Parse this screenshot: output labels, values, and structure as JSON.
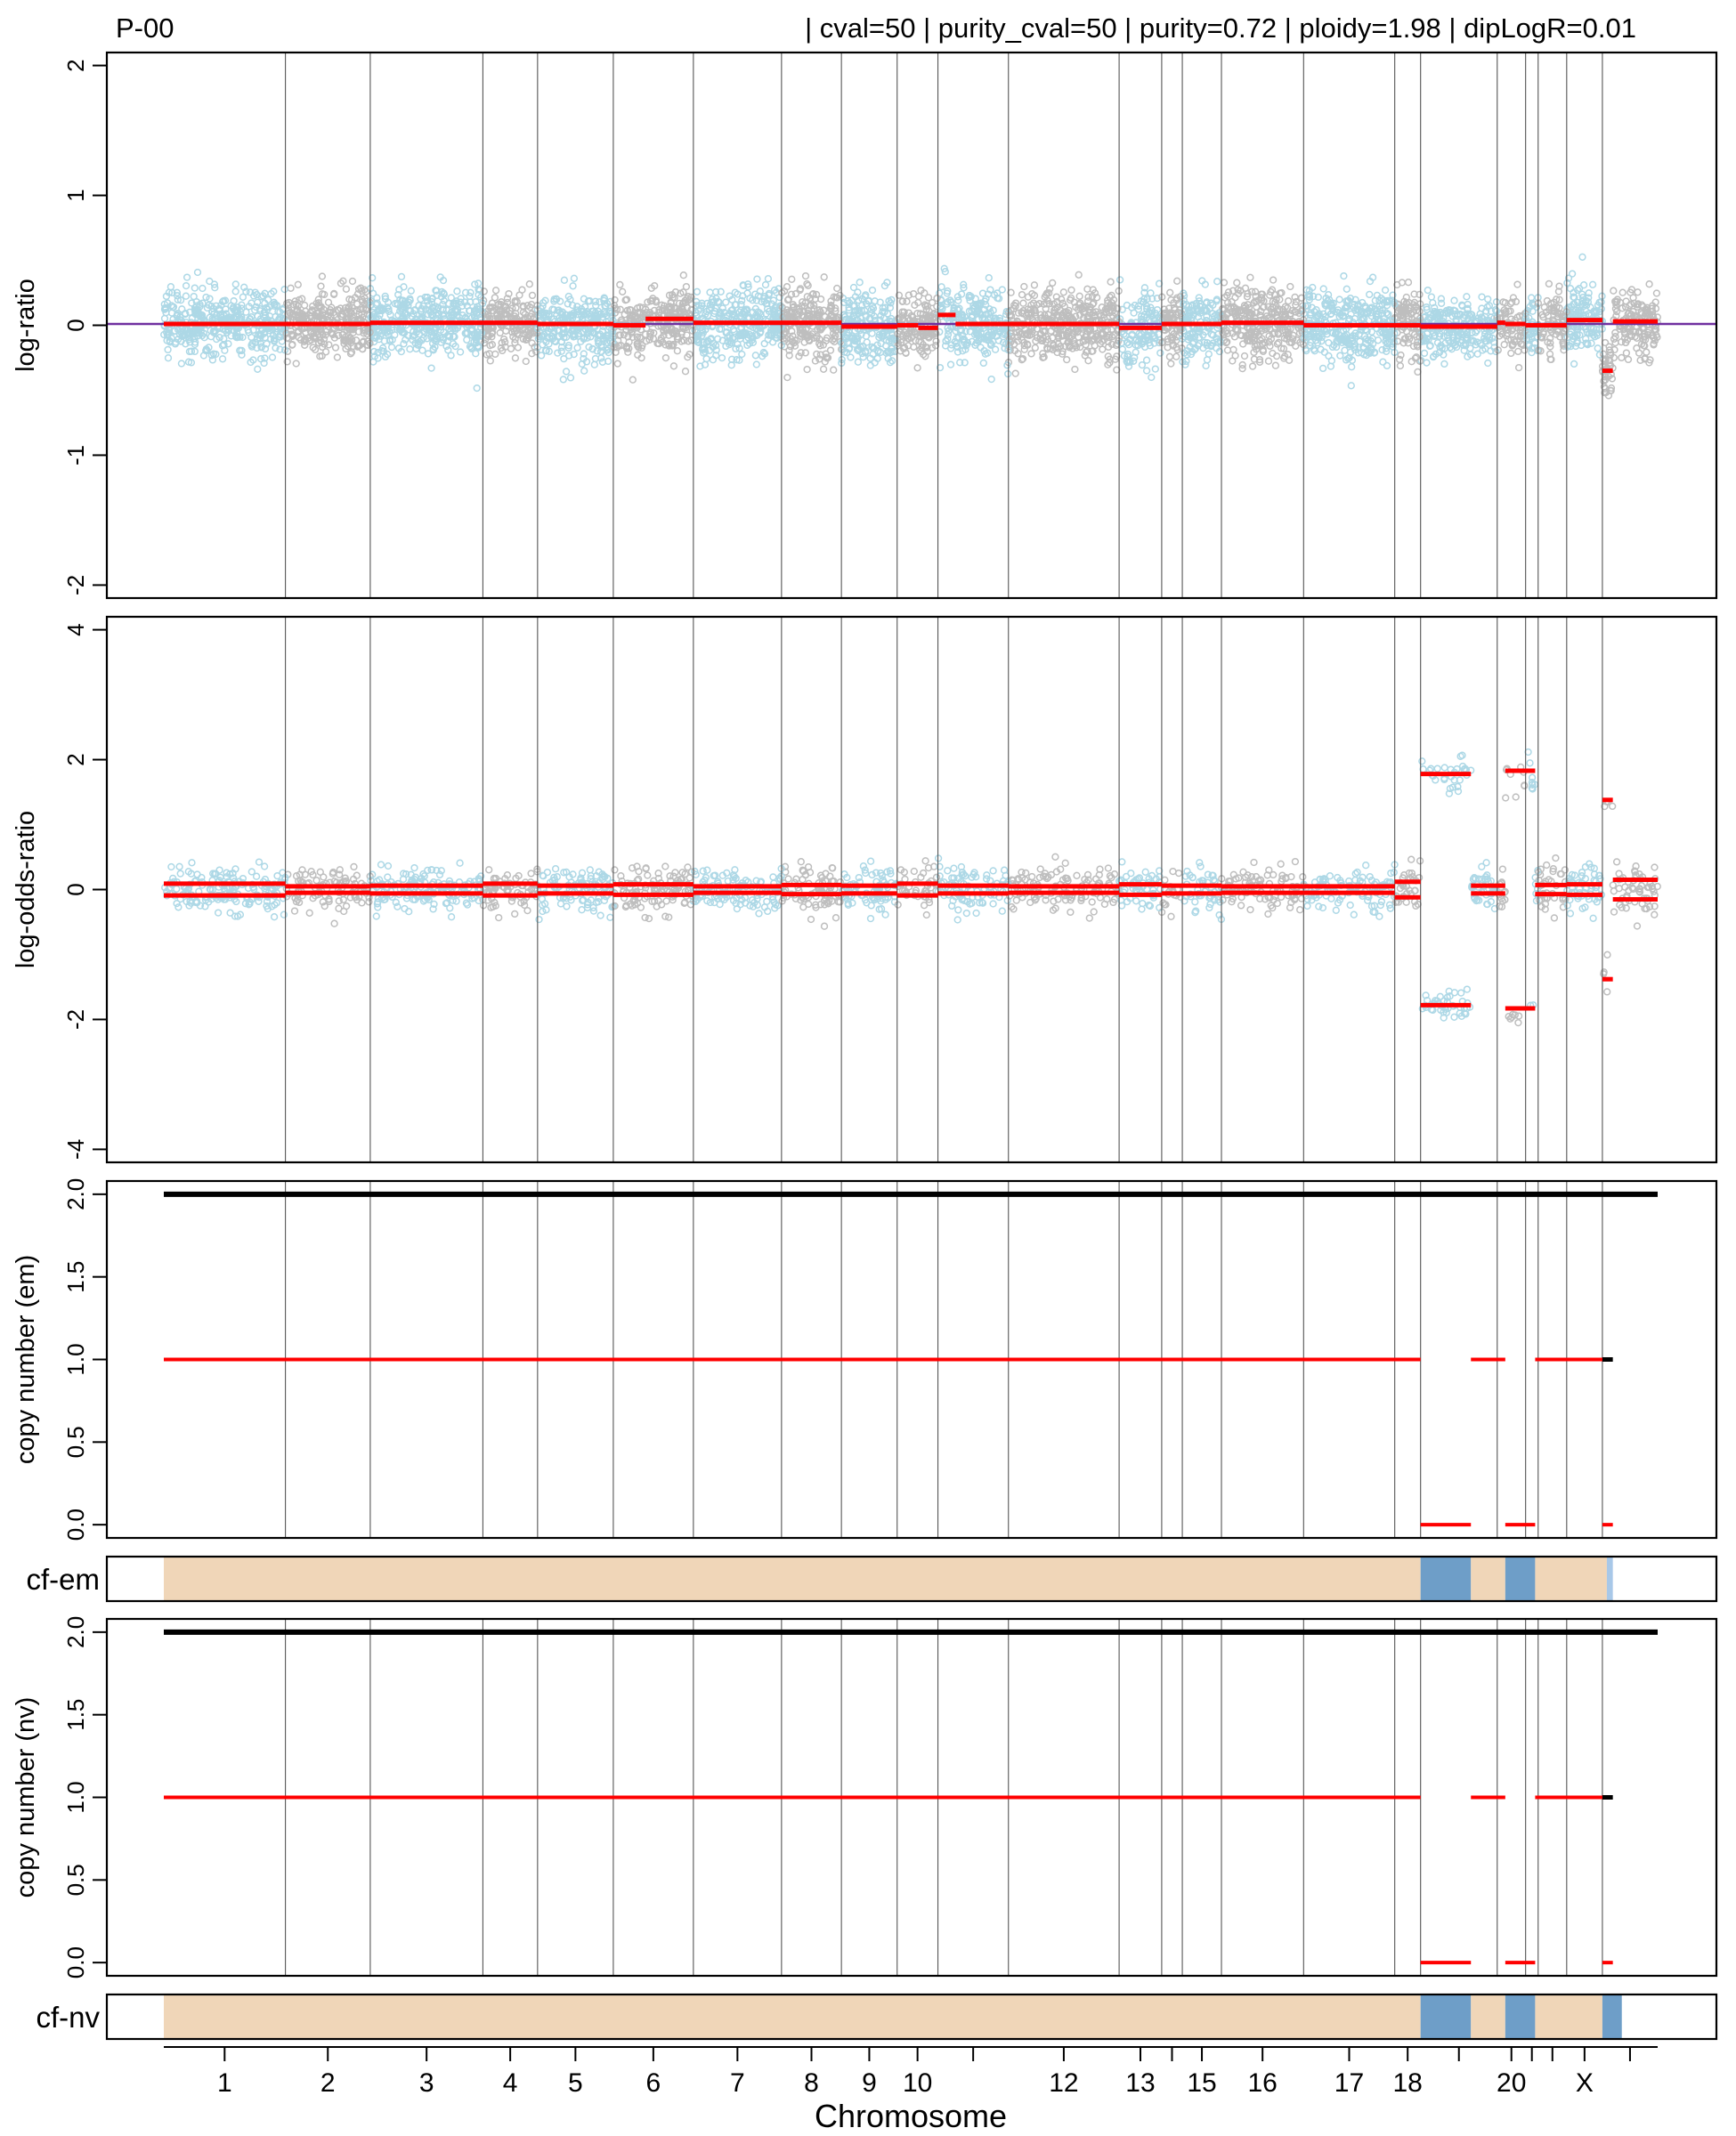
{
  "header": {
    "sample_id": "P-00",
    "params": "| cval=50 | purity_cval=50 | purity=0.72 | ploidy=1.98 | dipLogR=0.01"
  },
  "colors": {
    "point_a": "#add8e6",
    "point_b": "#bebebe",
    "segment": "#ff0000",
    "total_cn": "#000000",
    "baseline": "#7030a0",
    "cf_clonal": "#f0d6b8",
    "cf_subclonal": "#6e9ec8",
    "cf_light": "#a8c8e8"
  },
  "chart_data": {
    "type": "scatter",
    "title": "P-00 | cval=50 | purity_cval=50 | purity=0.72 | ploidy=1.98 | dipLogR=0.01",
    "xlabel": "Chromosome",
    "chromosome_tick_labels": [
      "1",
      "2",
      "3",
      "4",
      "5",
      "6",
      "7",
      "8",
      "9",
      "10",
      "",
      "12",
      "13",
      "",
      "15",
      "16",
      "17",
      "18",
      "",
      "20",
      "",
      "",
      "X"
    ],
    "chromosome_boundaries": [
      0.0,
      0.0814,
      0.1382,
      0.2136,
      0.2502,
      0.3009,
      0.3545,
      0.4135,
      0.4536,
      0.4909,
      0.5182,
      0.5654,
      0.6395,
      0.668,
      0.6818,
      0.708,
      0.763,
      0.824,
      0.8413,
      0.8926,
      0.9116,
      0.92,
      0.9391,
      0.963,
      1.0
    ],
    "panels": [
      {
        "name": "logR",
        "ylabel": "log-ratio",
        "ylim": [
          -2.1,
          2.1
        ],
        "yticks": [
          -2,
          -1,
          0,
          1,
          2
        ],
        "dipLogR": 0.01,
        "noise_sd": 0.13,
        "segments": [
          {
            "start": 0.0,
            "end": 0.1382,
            "value": 0.01
          },
          {
            "start": 0.1382,
            "end": 0.2136,
            "value": 0.02
          },
          {
            "start": 0.2136,
            "end": 0.2502,
            "value": 0.02
          },
          {
            "start": 0.2502,
            "end": 0.3009,
            "value": 0.01
          },
          {
            "start": 0.3009,
            "end": 0.3225,
            "value": 0.0
          },
          {
            "start": 0.3225,
            "end": 0.3545,
            "value": 0.05
          },
          {
            "start": 0.3545,
            "end": 0.4536,
            "value": 0.02
          },
          {
            "start": 0.4536,
            "end": 0.4909,
            "value": -0.01
          },
          {
            "start": 0.4909,
            "end": 0.505,
            "value": 0.0
          },
          {
            "start": 0.505,
            "end": 0.5182,
            "value": -0.02
          },
          {
            "start": 0.5182,
            "end": 0.53,
            "value": 0.08
          },
          {
            "start": 0.53,
            "end": 0.6395,
            "value": 0.01
          },
          {
            "start": 0.6395,
            "end": 0.668,
            "value": -0.02
          },
          {
            "start": 0.668,
            "end": 0.708,
            "value": 0.01
          },
          {
            "start": 0.708,
            "end": 0.763,
            "value": 0.02
          },
          {
            "start": 0.763,
            "end": 0.8413,
            "value": 0.0
          },
          {
            "start": 0.8413,
            "end": 0.8926,
            "value": -0.01
          },
          {
            "start": 0.8926,
            "end": 0.898,
            "value": 0.02
          },
          {
            "start": 0.898,
            "end": 0.9116,
            "value": 0.01
          },
          {
            "start": 0.9116,
            "end": 0.9391,
            "value": 0.0
          },
          {
            "start": 0.9391,
            "end": 0.963,
            "value": 0.04
          },
          {
            "start": 0.963,
            "end": 0.97,
            "value": -0.35
          },
          {
            "start": 0.97,
            "end": 1.0,
            "value": 0.03
          }
        ]
      },
      {
        "name": "logOR",
        "ylabel": "log-odds-ratio",
        "ylim": [
          -4.2,
          4.2
        ],
        "yticks": [
          -4,
          -2,
          0,
          2,
          4
        ],
        "noise_sd": 0.22,
        "segments": [
          {
            "start": 0.0,
            "end": 0.0814,
            "value": 0.09
          },
          {
            "start": 0.0814,
            "end": 0.1382,
            "value": 0.05
          },
          {
            "start": 0.1382,
            "end": 0.2136,
            "value": 0.06
          },
          {
            "start": 0.2136,
            "end": 0.2502,
            "value": 0.09
          },
          {
            "start": 0.2502,
            "end": 0.3009,
            "value": 0.06
          },
          {
            "start": 0.3009,
            "end": 0.3545,
            "value": 0.08
          },
          {
            "start": 0.3545,
            "end": 0.4135,
            "value": 0.05
          },
          {
            "start": 0.4135,
            "end": 0.4536,
            "value": 0.07
          },
          {
            "start": 0.4536,
            "end": 0.4909,
            "value": 0.06
          },
          {
            "start": 0.4909,
            "end": 0.5182,
            "value": 0.09
          },
          {
            "start": 0.5182,
            "end": 0.5654,
            "value": 0.06
          },
          {
            "start": 0.5654,
            "end": 0.6395,
            "value": 0.05
          },
          {
            "start": 0.6395,
            "end": 0.668,
            "value": 0.08
          },
          {
            "start": 0.668,
            "end": 0.708,
            "value": 0.06
          },
          {
            "start": 0.708,
            "end": 0.763,
            "value": 0.05
          },
          {
            "start": 0.763,
            "end": 0.824,
            "value": 0.05
          },
          {
            "start": 0.824,
            "end": 0.8413,
            "value": 0.12
          },
          {
            "start": 0.8413,
            "end": 0.875,
            "value": 1.78
          },
          {
            "start": 0.875,
            "end": 0.898,
            "value": 0.06
          },
          {
            "start": 0.898,
            "end": 0.918,
            "value": 1.83
          },
          {
            "start": 0.918,
            "end": 0.9391,
            "value": 0.07
          },
          {
            "start": 0.9391,
            "end": 0.963,
            "value": 0.08
          },
          {
            "start": 0.963,
            "end": 0.97,
            "value": 1.38
          },
          {
            "start": 0.97,
            "end": 1.0,
            "value": 0.15
          }
        ]
      },
      {
        "name": "cn_em",
        "ylabel": "copy number (em)",
        "ylim": [
          -0.08,
          2.08
        ],
        "yticks": [
          0.0,
          0.5,
          1.0,
          1.5,
          2.0
        ],
        "ytick_labels": [
          "0.0",
          "0.5",
          "1.0",
          "1.5",
          "2.0"
        ],
        "tcn": [
          {
            "start": 0.0,
            "end": 1.0,
            "value": 2
          }
        ],
        "lcn": [
          {
            "start": 0.0,
            "end": 0.8413,
            "value": 1
          },
          {
            "start": 0.8413,
            "end": 0.875,
            "value": 0
          },
          {
            "start": 0.875,
            "end": 0.898,
            "value": 1
          },
          {
            "start": 0.898,
            "end": 0.918,
            "value": 0
          },
          {
            "start": 0.918,
            "end": 0.963,
            "value": 1
          },
          {
            "start": 0.963,
            "end": 0.97,
            "value": 0
          }
        ]
      },
      {
        "name": "cn_nv",
        "ylabel": "copy number (nv)",
        "ylim": [
          -0.08,
          2.08
        ],
        "yticks": [
          0.0,
          0.5,
          1.0,
          1.5,
          2.0
        ],
        "ytick_labels": [
          "0.0",
          "0.5",
          "1.0",
          "1.5",
          "2.0"
        ],
        "tcn": [
          {
            "start": 0.0,
            "end": 1.0,
            "value": 2
          }
        ],
        "lcn": [
          {
            "start": 0.0,
            "end": 0.8413,
            "value": 1
          },
          {
            "start": 0.8413,
            "end": 0.875,
            "value": 0
          },
          {
            "start": 0.875,
            "end": 0.898,
            "value": 1
          },
          {
            "start": 0.898,
            "end": 0.918,
            "value": 0
          },
          {
            "start": 0.918,
            "end": 0.963,
            "value": 1
          },
          {
            "start": 0.963,
            "end": 0.97,
            "value": 0
          }
        ]
      }
    ],
    "cellular_fraction": {
      "em": {
        "label": "cf-em",
        "segments": [
          {
            "start": 0.0,
            "end": 0.8413,
            "level": "clonal"
          },
          {
            "start": 0.8413,
            "end": 0.875,
            "level": "subclonal"
          },
          {
            "start": 0.875,
            "end": 0.898,
            "level": "clonal"
          },
          {
            "start": 0.898,
            "end": 0.918,
            "level": "subclonal"
          },
          {
            "start": 0.918,
            "end": 0.966,
            "level": "clonal"
          },
          {
            "start": 0.966,
            "end": 0.97,
            "level": "light"
          }
        ]
      },
      "nv": {
        "label": "cf-nv",
        "segments": [
          {
            "start": 0.0,
            "end": 0.8413,
            "level": "clonal"
          },
          {
            "start": 0.8413,
            "end": 0.875,
            "level": "subclonal"
          },
          {
            "start": 0.875,
            "end": 0.898,
            "level": "clonal"
          },
          {
            "start": 0.898,
            "end": 0.918,
            "level": "subclonal"
          },
          {
            "start": 0.918,
            "end": 0.963,
            "level": "clonal"
          },
          {
            "start": 0.963,
            "end": 0.976,
            "level": "subclonal"
          }
        ]
      }
    }
  }
}
